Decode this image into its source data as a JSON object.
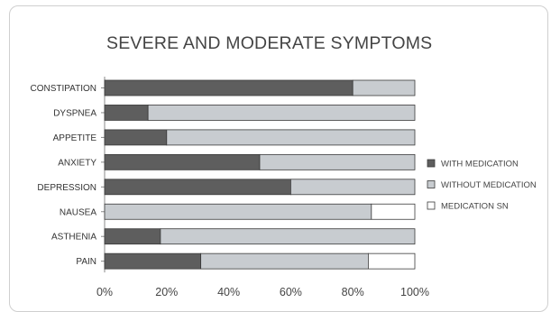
{
  "chart_data": {
    "type": "bar",
    "stacked": true,
    "orientation": "horizontal",
    "title": "SEVERE AND MODERATE SYMPTOMS",
    "categories": [
      "CONSTIPATION",
      "DYSPNEA",
      "APPETITE",
      "ANXIETY",
      "DEPRESSION",
      "NAUSEA",
      "ASTHENIA",
      "PAIN"
    ],
    "series": [
      {
        "name": "WITH MEDICATION",
        "values": [
          80,
          14,
          20,
          50,
          60,
          0,
          18,
          31
        ],
        "color": "#5e5e5e"
      },
      {
        "name": "WITHOUT MEDICATION",
        "values": [
          20,
          86,
          80,
          50,
          40,
          86,
          82,
          54
        ],
        "color": "#c8ccd0"
      },
      {
        "name": "MEDICATION SN",
        "values": [
          0,
          0,
          0,
          0,
          0,
          14,
          0,
          15
        ],
        "color": "#ffffff"
      }
    ],
    "xlim": [
      0,
      100
    ],
    "xticks": [
      "0%",
      "20%",
      "40%",
      "60%",
      "80%",
      "100%"
    ],
    "xlabel": "",
    "ylabel": "",
    "grid": false,
    "legend_position": "right"
  }
}
